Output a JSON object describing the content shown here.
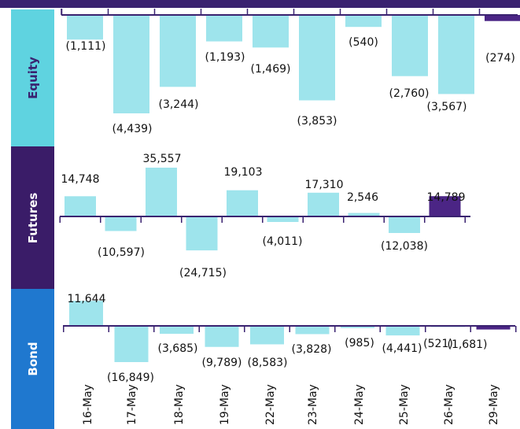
{
  "colors": {
    "bar": "#9ee4ec",
    "highlight_bar": "#4b2585",
    "axis": "#3a2270",
    "text": "#111111",
    "equity_panel": "#5fd3e0",
    "futures_panel": "#3a1c68",
    "bond_panel": "#1f78cf"
  },
  "chart_data": [
    {
      "type": "bar",
      "title": "Equity",
      "categories": [
        "16-May",
        "17-May",
        "18-May",
        "19-May",
        "22-May",
        "23-May",
        "24-May",
        "25-May",
        "26-May",
        "29-May"
      ],
      "values": [
        -1111,
        -4439,
        -3244,
        -1193,
        -1469,
        -3853,
        -540,
        -2760,
        -3567,
        -274
      ],
      "labels": [
        "(1,111)",
        "(4,439)",
        "(3,244)",
        "(1,193)",
        "(1,469)",
        "(3,853)",
        "(540)",
        "(2,760)",
        "(3,567)",
        "(274)"
      ],
      "highlight_index": 9
    },
    {
      "type": "bar",
      "title": "Futures",
      "categories": [
        "16-May",
        "17-May",
        "18-May",
        "19-May",
        "22-May",
        "23-May",
        "24-May",
        "25-May",
        "26-May",
        "29-May"
      ],
      "values": [
        14748,
        -10597,
        35557,
        -24715,
        19103,
        -4011,
        17310,
        2546,
        -12038,
        14789
      ],
      "labels": [
        "14,748",
        "(10,597)",
        "35,557",
        "(24,715)",
        "19,103",
        "(4,011)",
        "17,310",
        "2,546",
        "(12,038)",
        "14,789"
      ],
      "highlight_index": 9
    },
    {
      "type": "bar",
      "title": "Bond",
      "categories": [
        "16-May",
        "17-May",
        "18-May",
        "19-May",
        "22-May",
        "23-May",
        "24-May",
        "25-May",
        "26-May",
        "29-May"
      ],
      "values": [
        11644,
        -16849,
        -3685,
        -9789,
        -8583,
        -3828,
        -985,
        -4441,
        -521,
        -1681
      ],
      "labels": [
        "11,644",
        "(16,849)",
        "(3,685)",
        "(9,789)",
        "(8,583)",
        "(3,828)",
        "(985)",
        "(4,441)",
        "(521)",
        "(1,681)"
      ],
      "highlight_index": 9
    }
  ]
}
